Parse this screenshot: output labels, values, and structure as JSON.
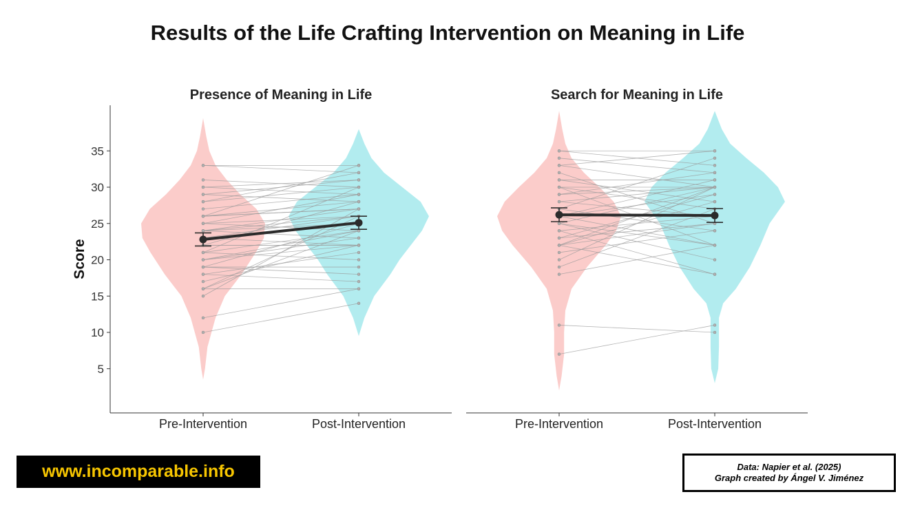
{
  "title": "Results of the Life Crafting Intervention on Meaning in Life",
  "website": "www.incomparable.info",
  "credits": {
    "line1": "Data: Napier et al. (2025)",
    "line2": "Graph created by Ángel V. Jiménez"
  },
  "colors": {
    "pre": "#f8aaa6",
    "post": "#7fe0e4",
    "mean_line": "#2b2b2b",
    "paired_line": "#9a9a9a",
    "badge_text": "#f7c600"
  },
  "chart_data": [
    {
      "type": "violin",
      "title": "Presence of Meaning in Life",
      "ylabel": "Score",
      "xlabel": "",
      "categories": [
        "Pre-Intervention",
        "Post-Intervention"
      ],
      "ylim": [
        0,
        40
      ],
      "yticks": [
        5,
        10,
        15,
        20,
        25,
        30,
        35
      ],
      "means": [
        22.8,
        25.1
      ],
      "errors": [
        0.9,
        0.9
      ],
      "pairs": [
        [
          33,
          33
        ],
        [
          33,
          32
        ],
        [
          31,
          30
        ],
        [
          30,
          31
        ],
        [
          30,
          29
        ],
        [
          29,
          31
        ],
        [
          29,
          28
        ],
        [
          28,
          32
        ],
        [
          28,
          30
        ],
        [
          27,
          29
        ],
        [
          26,
          33
        ],
        [
          26,
          28
        ],
        [
          26,
          27
        ],
        [
          26,
          27
        ],
        [
          25,
          26
        ],
        [
          25,
          29
        ],
        [
          25,
          24
        ],
        [
          24,
          26
        ],
        [
          24,
          25
        ],
        [
          24,
          27
        ],
        [
          24,
          23
        ],
        [
          23,
          22
        ],
        [
          23,
          26
        ],
        [
          23,
          25
        ],
        [
          22,
          22
        ],
        [
          22,
          22
        ],
        [
          22,
          28
        ],
        [
          21,
          30
        ],
        [
          21,
          24
        ],
        [
          21,
          20
        ],
        [
          20,
          22
        ],
        [
          20,
          24
        ],
        [
          20,
          23
        ],
        [
          19,
          19
        ],
        [
          19,
          25
        ],
        [
          19,
          18
        ],
        [
          18,
          21
        ],
        [
          18,
          17
        ],
        [
          17,
          22
        ],
        [
          16,
          16
        ],
        [
          16,
          24
        ],
        [
          16,
          26
        ],
        [
          15,
          27
        ],
        [
          12,
          16
        ],
        [
          10,
          14
        ]
      ],
      "density_pre": [
        [
          3.5,
          0
        ],
        [
          5,
          0.03
        ],
        [
          8,
          0.07
        ],
        [
          12,
          0.2
        ],
        [
          15,
          0.35
        ],
        [
          18,
          0.62
        ],
        [
          21,
          0.85
        ],
        [
          23,
          0.98
        ],
        [
          25,
          1
        ],
        [
          27,
          0.86
        ],
        [
          29,
          0.6
        ],
        [
          31,
          0.38
        ],
        [
          33,
          0.2
        ],
        [
          35,
          0.1
        ],
        [
          37,
          0.05
        ],
        [
          39.5,
          0
        ]
      ],
      "density_post": [
        [
          9.5,
          0
        ],
        [
          12,
          0.08
        ],
        [
          15,
          0.22
        ],
        [
          18,
          0.45
        ],
        [
          20,
          0.58
        ],
        [
          22,
          0.74
        ],
        [
          24,
          0.9
        ],
        [
          26,
          1
        ],
        [
          28,
          0.88
        ],
        [
          30,
          0.62
        ],
        [
          32,
          0.36
        ],
        [
          34,
          0.18
        ],
        [
          36,
          0.08
        ],
        [
          38,
          0
        ]
      ]
    },
    {
      "type": "violin",
      "title": "Search for Meaning in Life",
      "ylabel": "",
      "xlabel": "",
      "categories": [
        "Pre-Intervention",
        "Post-Intervention"
      ],
      "ylim": [
        0,
        40
      ],
      "yticks": [],
      "means": [
        26.2,
        26.1
      ],
      "errors": [
        0.95,
        0.95
      ],
      "pairs": [
        [
          35,
          35
        ],
        [
          35,
          33
        ],
        [
          34,
          32
        ],
        [
          33,
          30
        ],
        [
          33,
          35
        ],
        [
          32,
          25
        ],
        [
          31,
          31
        ],
        [
          31,
          28
        ],
        [
          30,
          30
        ],
        [
          30,
          22
        ],
        [
          30,
          27
        ],
        [
          29,
          32
        ],
        [
          29,
          30
        ],
        [
          28,
          26
        ],
        [
          28,
          30
        ],
        [
          27,
          34
        ],
        [
          27,
          24
        ],
        [
          26,
          29
        ],
        [
          26,
          22
        ],
        [
          26,
          31
        ],
        [
          25,
          30
        ],
        [
          25,
          22
        ],
        [
          25,
          20
        ],
        [
          24,
          18
        ],
        [
          24,
          26
        ],
        [
          23,
          29
        ],
        [
          23,
          25
        ],
        [
          22,
          30
        ],
        [
          22,
          25
        ],
        [
          22,
          18
        ],
        [
          22,
          28
        ],
        [
          21,
          24
        ],
        [
          20,
          30
        ],
        [
          19,
          27
        ],
        [
          18,
          22
        ],
        [
          11,
          10
        ],
        [
          7,
          11
        ]
      ],
      "density_pre": [
        [
          2,
          0
        ],
        [
          4,
          0.04
        ],
        [
          7,
          0.08
        ],
        [
          10,
          0.08
        ],
        [
          13,
          0.1
        ],
        [
          16,
          0.2
        ],
        [
          19,
          0.45
        ],
        [
          22,
          0.75
        ],
        [
          24,
          0.92
        ],
        [
          26,
          1
        ],
        [
          28,
          0.88
        ],
        [
          30,
          0.65
        ],
        [
          32,
          0.4
        ],
        [
          34,
          0.2
        ],
        [
          36,
          0.1
        ],
        [
          38,
          0.05
        ],
        [
          40.5,
          0
        ]
      ],
      "density_post": [
        [
          3,
          0
        ],
        [
          5,
          0.05
        ],
        [
          8,
          0.06
        ],
        [
          10,
          0.06
        ],
        [
          12,
          0.06
        ],
        [
          14,
          0.12
        ],
        [
          16,
          0.3
        ],
        [
          19,
          0.5
        ],
        [
          22,
          0.65
        ],
        [
          25,
          0.78
        ],
        [
          28,
          1
        ],
        [
          30,
          0.9
        ],
        [
          32,
          0.7
        ],
        [
          34,
          0.45
        ],
        [
          36,
          0.22
        ],
        [
          38,
          0.1
        ],
        [
          40.5,
          0
        ]
      ]
    }
  ]
}
